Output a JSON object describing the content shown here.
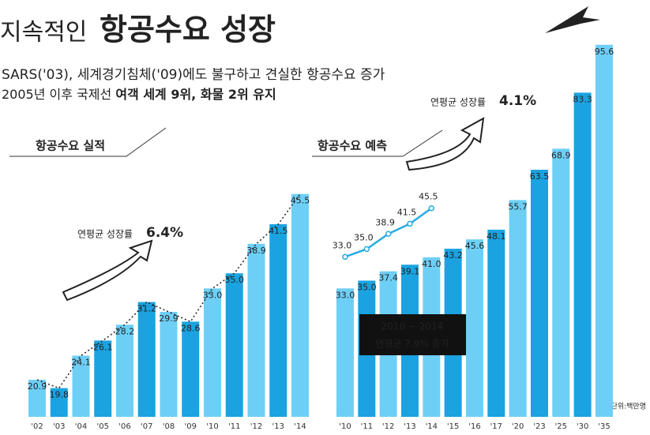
{
  "header": {
    "title_light": "지속적인",
    "title_bold": "항공수요 성장",
    "subtitle1": "SARS('03), 세계경기침체('09)에도 불구하고 견실한 항공수요 증가",
    "subtitle2": "2005년 이후 국제선",
    "subtitle2_bold": "여객 세계 9위, 화물 2위 유지",
    "unit": "단위:백만명"
  },
  "chart_data": [
    {
      "type": "bar",
      "title": "항공수요 실적",
      "growth_label": "연평균 성장률",
      "growth_value": "6.4%",
      "categories": [
        "'02",
        "'03",
        "'04",
        "'05",
        "'06",
        "'07",
        "'08",
        "'09",
        "'10",
        "'11",
        "'12",
        "'13",
        "'14"
      ],
      "values": [
        20.9,
        19.8,
        24.1,
        26.1,
        28.2,
        31.2,
        29.9,
        28.6,
        33.0,
        35.0,
        38.9,
        41.5,
        45.5
      ],
      "value_labels": [
        "20.9",
        "19.8",
        "24.1",
        "26.1",
        "28.2",
        "31.2",
        "29.9",
        "28.6",
        "33.0",
        "35.0",
        "38.9",
        "41.5",
        "45.5"
      ],
      "colors": [
        "#6dcff6",
        "#1aa3e0"
      ],
      "trend_line": true,
      "ylim": [
        16,
        67
      ]
    },
    {
      "type": "bar",
      "title": "항공수요 예측",
      "growth_label": "연평균 성장률",
      "growth_value": "4.1%",
      "categories": [
        "'10",
        "'11",
        "'12",
        "'13",
        "'14",
        "'15",
        "'16",
        "'17",
        "'20",
        "'23",
        "'25",
        "'30",
        "'35"
      ],
      "values": [
        33.0,
        35.0,
        37.4,
        39.1,
        41.0,
        43.2,
        45.6,
        48.1,
        55.7,
        63.5,
        68.9,
        83.3,
        95.6
      ],
      "value_labels": [
        "33.0",
        "35.0",
        "37.4",
        "39.1",
        "41.0",
        "43.2",
        "45.6",
        "48.1",
        "55.7",
        "63.5",
        "68.9",
        "83.3",
        "95.6"
      ],
      "colors": [
        "#6dcff6",
        "#1aa3e0"
      ],
      "ylim": [
        0,
        99
      ],
      "line": {
        "color": "#29abe2",
        "values": [
          33.0,
          35.0,
          38.9,
          41.5,
          45.5
        ],
        "value_labels": [
          "33.0",
          "35.0",
          "38.9",
          "41.5",
          "45.5"
        ]
      },
      "box_title": "2010 ~ 2014",
      "box_text": "연평균 7.9% 증가"
    }
  ]
}
